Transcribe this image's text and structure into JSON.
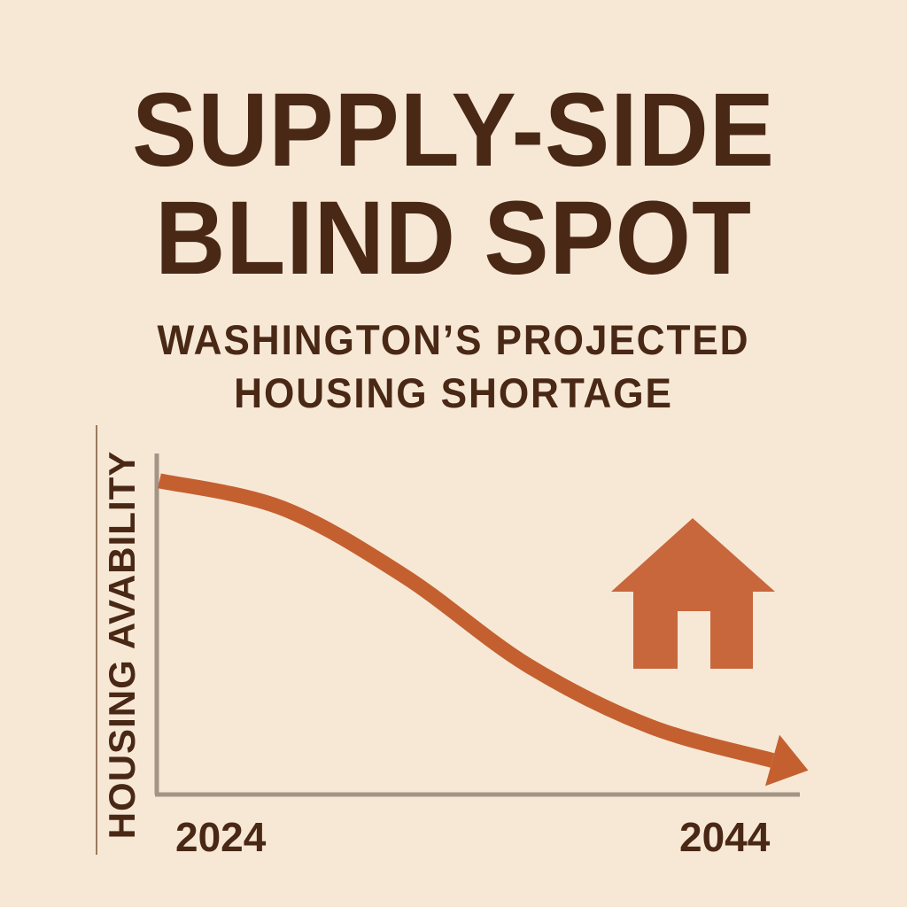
{
  "title_lines": [
    "SUPPLY-SIDE",
    "BLIND SPOT"
  ],
  "subtitle_lines": [
    "WASHINGTON’S PROJECTED",
    "HOUSING SHORTAGE"
  ],
  "colors": {
    "background": "#f7e8d6",
    "text": "#4a2816",
    "line": "#c4602f",
    "house": "#c8663c",
    "axis": "#a39485"
  },
  "icons": [
    "house-icon",
    "arrow-head-icon"
  ],
  "chart_data": {
    "type": "line",
    "title": "",
    "xlabel": "",
    "ylabel": "HOUSING AVABILITY",
    "x_tick_labels": [
      "2024",
      "2044"
    ],
    "xlim": [
      2024,
      2044
    ],
    "y_ticks_shown": false,
    "grid": false,
    "legend": "none",
    "series": [
      {
        "x": [
          2024,
          2028,
          2032,
          2036,
          2040,
          2044
        ],
        "y": [
          92,
          84,
          64,
          38,
          20,
          10
        ]
      }
    ],
    "trend": "declining"
  }
}
